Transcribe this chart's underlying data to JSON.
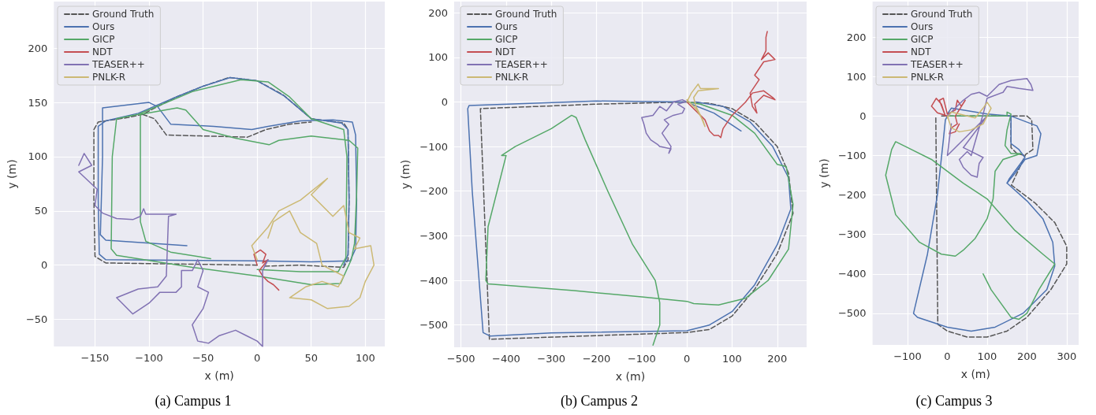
{
  "chart_data": [
    {
      "type": "line",
      "title": "(a) Campus 1",
      "xlabel": "x (m)",
      "ylabel": "y (m)",
      "xlim": [
        -188,
        118
      ],
      "ylim": [
        -75,
        243
      ],
      "xticks": [
        -150,
        -100,
        -50,
        0,
        50,
        100
      ],
      "yticks": [
        -50,
        0,
        50,
        100,
        150,
        200
      ],
      "grid": true,
      "legend": "top left",
      "marker": "none",
      "series": [
        {
          "name": "Ground Truth",
          "color": "#555555",
          "line_style": "dashed",
          "x": [
            0,
            -140,
            -150,
            -151,
            -151,
            -147,
            -120,
            -106,
            -75,
            -50,
            -26,
            0,
            24,
            50,
            80,
            84,
            85,
            84,
            80,
            40,
            5
          ],
          "values": [
            0,
            2,
            8,
            60,
            125,
            132,
            136,
            139,
            155,
            165,
            173,
            170,
            157,
            135,
            131,
            125,
            60,
            5,
            -2,
            0,
            -1
          ]
        },
        {
          "color": "#555555",
          "line_style": "dashed",
          "x": [
            -106,
            -95,
            -84,
            -9,
            8,
            30,
            50
          ],
          "values": [
            139,
            135,
            120,
            118,
            125,
            130,
            132
          ]
        },
        {
          "name": "Ours",
          "color": "#4c72b0",
          "line_style": "solid",
          "x": [
            -65,
            -140,
            -145,
            -143,
            -143,
            -100,
            -92,
            -80,
            -40,
            -5,
            10,
            40,
            70,
            88,
            91,
            92,
            91,
            86,
            50,
            0,
            -140,
            -146,
            -147,
            -147,
            -140,
            -110,
            -75,
            -50,
            -25,
            0,
            25,
            50,
            78,
            84,
            85,
            84,
            80
          ],
          "values": [
            18,
            23,
            28,
            100,
            145,
            150,
            146,
            130,
            128,
            125,
            128,
            133,
            134,
            132,
            120,
            60,
            15,
            4,
            3,
            4,
            5,
            10,
            60,
            128,
            133,
            140,
            155,
            165,
            173,
            170,
            156,
            135,
            131,
            125,
            60,
            10,
            0
          ]
        },
        {
          "name": "GICP",
          "color": "#55a868",
          "line_style": "solid",
          "x": [
            -43,
            -80,
            -103,
            -108,
            -108,
            -74,
            -66,
            -50,
            -20,
            11,
            20,
            50,
            85,
            93,
            92,
            90,
            87,
            77,
            50,
            0,
            -60,
            -130,
            -135,
            -134,
            -130,
            -110,
            -60,
            -15,
            10,
            30,
            50,
            80,
            83,
            82,
            75,
            40,
            0
          ],
          "values": [
            6,
            12,
            22,
            40,
            139,
            145,
            143,
            125,
            117,
            111,
            115,
            119,
            115,
            108,
            67,
            20,
            5,
            -17,
            -18,
            -10,
            -2,
            9,
            15,
            100,
            135,
            139,
            160,
            171,
            169,
            155,
            135,
            125,
            100,
            7,
            -6,
            -6,
            -4
          ]
        },
        {
          "name": "NDT",
          "color": "#c44e52",
          "line_style": "solid",
          "x": [
            0,
            -3,
            3,
            8,
            5,
            10,
            2,
            5,
            10,
            15,
            20
          ],
          "values": [
            0,
            10,
            14,
            10,
            2,
            5,
            -5,
            -10,
            -15,
            -18,
            -23
          ]
        },
        {
          "name": "TEASER++",
          "color": "#8172b3",
          "line_style": "solid",
          "x": [
            -165,
            -160,
            -153,
            -165,
            -148,
            -150,
            -143,
            -130,
            -115,
            -108,
            -105,
            -103,
            -75,
            -82,
            -84,
            -92,
            -110,
            -130,
            -115,
            -100,
            -90,
            -75,
            -70,
            -70,
            -60,
            -55,
            -50,
            -55,
            -45,
            -50,
            -60,
            -55,
            -45,
            -35,
            -20,
            -10,
            0,
            5,
            5,
            10
          ],
          "values": [
            92,
            103,
            92,
            86,
            70,
            55,
            48,
            43,
            42,
            45,
            52,
            47,
            47,
            45,
            -10,
            -20,
            -22,
            -30,
            -45,
            -35,
            -25,
            -25,
            -20,
            -5,
            -5,
            5,
            -5,
            -20,
            -25,
            -40,
            -55,
            -70,
            -72,
            -65,
            -60,
            -65,
            -70,
            -75,
            -5,
            5
          ]
        },
        {
          "name": "PNLK-R",
          "color": "#ccb974",
          "line_style": "solid",
          "x": [
            0,
            -5,
            10,
            20,
            40,
            65,
            50,
            70,
            80,
            85,
            95,
            90,
            105,
            108,
            100,
            95,
            85,
            65,
            50,
            30,
            45,
            60,
            75,
            80,
            60,
            55,
            40,
            30,
            15,
            10
          ],
          "values": [
            5,
            18,
            35,
            50,
            60,
            80,
            65,
            45,
            55,
            30,
            25,
            15,
            18,
            0,
            -15,
            -30,
            -38,
            -40,
            -32,
            -30,
            -20,
            -15,
            -20,
            -10,
            0,
            20,
            30,
            50,
            40,
            25
          ]
        }
      ]
    },
    {
      "type": "line",
      "title": "(b) Campus 2",
      "xlabel": "x (m)",
      "ylabel": "y (m)",
      "xlim": [
        -515,
        265
      ],
      "ylim": [
        -550,
        225
      ],
      "xticks": [
        -500,
        -400,
        -300,
        -200,
        -100,
        0,
        100,
        200
      ],
      "yticks": [
        -500,
        -400,
        -300,
        -200,
        -100,
        0,
        100,
        200
      ],
      "grid": true,
      "legend": "top left",
      "marker": "none",
      "series": [
        {
          "name": "Ground Truth",
          "color": "#555555",
          "line_style": "dashed",
          "x": [
            0,
            -200,
            -457,
            -437,
            0,
            50,
            100,
            150,
            200,
            235,
            225,
            200,
            150,
            100,
            50,
            10
          ],
          "values": [
            0,
            -5,
            -15,
            -532,
            -517,
            -510,
            -480,
            -420,
            -340,
            -250,
            -160,
            -100,
            -45,
            -15,
            -3,
            -1
          ]
        },
        {
          "name": "Ours",
          "color": "#4c72b0",
          "line_style": "solid",
          "x": [
            0,
            -200,
            -482,
            -485,
            -475,
            -451,
            -435,
            -300,
            0,
            50,
            100,
            150,
            200,
            230,
            225,
            190,
            140,
            80,
            20
          ],
          "values": [
            0,
            2,
            -8,
            -15,
            -200,
            -517,
            -525,
            -518,
            -513,
            -500,
            -470,
            -410,
            -320,
            -240,
            -170,
            -100,
            -45,
            -10,
            0
          ]
        },
        {
          "color": "#4c72b0",
          "line_style": "solid",
          "x": [
            10,
            60,
            120
          ],
          "values": [
            -5,
            -25,
            -65
          ]
        },
        {
          "name": "GICP",
          "color": "#55a868",
          "line_style": "solid",
          "x": [
            0,
            30,
            100,
            150,
            200,
            220,
            235,
            225,
            180,
            130,
            70,
            15,
            0,
            -100,
            -250,
            -440,
            -445,
            -440,
            -420,
            -400,
            -410,
            -380,
            -300,
            -255,
            -245,
            -225,
            -175,
            -120,
            -70,
            -60,
            -60,
            -75
          ],
          "values": [
            0,
            -5,
            -30,
            -70,
            -140,
            -145,
            -230,
            -330,
            -400,
            -440,
            -455,
            -452,
            -447,
            -437,
            -423,
            -408,
            -400,
            -280,
            -200,
            -120,
            -120,
            -100,
            -60,
            -30,
            -35,
            -85,
            -200,
            -320,
            -400,
            -450,
            -500,
            -545
          ]
        },
        {
          "name": "NDT",
          "color": "#c44e52",
          "line_style": "solid",
          "x": [
            0,
            40,
            50,
            60,
            70,
            75,
            80,
            100,
            130,
            145,
            170,
            190,
            195,
            170,
            150,
            155,
            145,
            140,
            160,
            150,
            170,
            195,
            180,
            165,
            175,
            175,
            178
          ],
          "values": [
            0,
            -40,
            -65,
            -75,
            -75,
            -80,
            -60,
            -30,
            0,
            20,
            25,
            10,
            5,
            15,
            -5,
            -25,
            -10,
            20,
            50,
            60,
            90,
            95,
            110,
            95,
            115,
            145,
            158
          ]
        },
        {
          "name": "TEASER++",
          "color": "#8172b3",
          "line_style": "solid",
          "x": [
            0,
            -10,
            -30,
            -45,
            -60,
            -75,
            -100,
            -95,
            -90,
            -80,
            -65,
            -60,
            -35,
            -40,
            -35,
            -55,
            -40,
            -50,
            -30,
            -10,
            -5,
            -20,
            -5
          ],
          "values": [
            0,
            5,
            0,
            -20,
            -10,
            -30,
            -35,
            -50,
            -70,
            -85,
            -95,
            -100,
            -105,
            -115,
            -100,
            -70,
            -50,
            -40,
            -30,
            -25,
            -15,
            -5,
            0
          ]
        },
        {
          "name": "PNLK-R",
          "color": "#ccb974",
          "line_style": "solid",
          "x": [
            0,
            10,
            25,
            30,
            70,
            25,
            15,
            20,
            30,
            40,
            35,
            20,
            0
          ],
          "values": [
            0,
            20,
            40,
            30,
            30,
            25,
            10,
            -10,
            -30,
            -55,
            -40,
            -15,
            5
          ]
        }
      ]
    },
    {
      "type": "line",
      "title": "(c) Campus 3",
      "xlabel": "x (m)",
      "ylabel": "y (m)",
      "xlim": [
        -188,
        330
      ],
      "ylim": [
        -580,
        290
      ],
      "xticks": [
        -100,
        0,
        100,
        200,
        300
      ],
      "yticks": [
        -500,
        -400,
        -300,
        -200,
        -100,
        0,
        100,
        200
      ],
      "grid": true,
      "legend": "top left",
      "marker": "none",
      "series": [
        {
          "name": "Ground Truth",
          "color": "#555555",
          "line_style": "dashed",
          "x": [
            -29,
            -24,
            0,
            50,
            100,
            150,
            200,
            260,
            300,
            300,
            270,
            220,
            161,
            197,
            215,
            212,
            200,
            160,
            0,
            -20
          ],
          "values": [
            -5,
            -528,
            -545,
            -560,
            -560,
            -545,
            -510,
            -440,
            -375,
            -330,
            -270,
            -220,
            -175,
            -97,
            -85,
            -10,
            0,
            0,
            0,
            0
          ]
        },
        {
          "color": "#555555",
          "line_style": "dashed",
          "x": [
            160,
            160,
            175,
            195
          ],
          "values": [
            0,
            -80,
            -95,
            -100
          ]
        },
        {
          "name": "Ours",
          "color": "#4c72b0",
          "line_style": "solid",
          "x": [
            0,
            -5,
            -10,
            -25,
            -50,
            -85,
            -75,
            0,
            60,
            120,
            190,
            250,
            270,
            265,
            240,
            200,
            150,
            155,
            195,
            180,
            160,
            160,
            100,
            10,
            0
          ],
          "values": [
            0,
            -10,
            -60,
            -200,
            -350,
            -500,
            -510,
            -535,
            -545,
            -535,
            -500,
            -440,
            -380,
            -320,
            -260,
            -215,
            -170,
            -160,
            -105,
            -85,
            -70,
            0,
            5,
            20,
            5
          ]
        },
        {
          "color": "#4c72b0",
          "line_style": "solid",
          "x": [
            160,
            225,
            235,
            225,
            195,
            170,
            150
          ],
          "values": [
            0,
            -25,
            -45,
            -100,
            -110,
            -145,
            -170
          ]
        },
        {
          "name": "GICP",
          "color": "#55a868",
          "line_style": "solid",
          "x": [
            0,
            150,
            150,
            160,
            150,
            145,
            160,
            185,
            140,
            120,
            115,
            100,
            70,
            40,
            20,
            -15,
            -70,
            -130,
            -155,
            -140,
            -130,
            -100,
            -40,
            40,
            100,
            170,
            240,
            270,
            230,
            200,
            180,
            160,
            110,
            90
          ],
          "values": [
            0,
            0,
            10,
            5,
            -35,
            -75,
            -95,
            -95,
            -110,
            -140,
            -210,
            -260,
            -310,
            -340,
            -355,
            -350,
            -320,
            -250,
            -150,
            -85,
            -65,
            -80,
            -110,
            -170,
            -210,
            -290,
            -350,
            -375,
            -440,
            -500,
            -515,
            -510,
            -440,
            -400
          ]
        },
        {
          "name": "NDT",
          "color": "#c44e52",
          "line_style": "solid",
          "x": [
            0,
            -25,
            -40,
            -28,
            -15,
            -5,
            -20,
            -10,
            0,
            20,
            25,
            35,
            45,
            20,
            25,
            10,
            5,
            20,
            30
          ],
          "values": [
            0,
            8,
            25,
            45,
            30,
            0,
            40,
            45,
            5,
            15,
            40,
            25,
            40,
            0,
            -20,
            -30,
            -45,
            -40,
            -20
          ]
        },
        {
          "name": "TEASER++",
          "color": "#8172b3",
          "line_style": "solid",
          "x": [
            0,
            40,
            60,
            80,
            100,
            110,
            120,
            130,
            160,
            200,
            210,
            215,
            180,
            150,
            140,
            100,
            90,
            60,
            50,
            30,
            40,
            60,
            75,
            80,
            90,
            60,
            40,
            100,
            0,
            10
          ],
          "values": [
            0,
            40,
            55,
            60,
            50,
            60,
            70,
            80,
            90,
            95,
            80,
            65,
            70,
            75,
            60,
            45,
            5,
            -100,
            -90,
            -110,
            -130,
            -150,
            -155,
            -120,
            -105,
            -90,
            -80,
            0,
            -100,
            -20
          ]
        },
        {
          "name": "PNLK-R",
          "color": "#ccb974",
          "line_style": "solid",
          "x": [
            0,
            10,
            30,
            60,
            90,
            100,
            110,
            100,
            90,
            70,
            50,
            30,
            10,
            0
          ],
          "values": [
            0,
            -30,
            -40,
            -35,
            -20,
            0,
            20,
            35,
            20,
            -5,
            0,
            5,
            10,
            -5
          ]
        }
      ]
    }
  ]
}
